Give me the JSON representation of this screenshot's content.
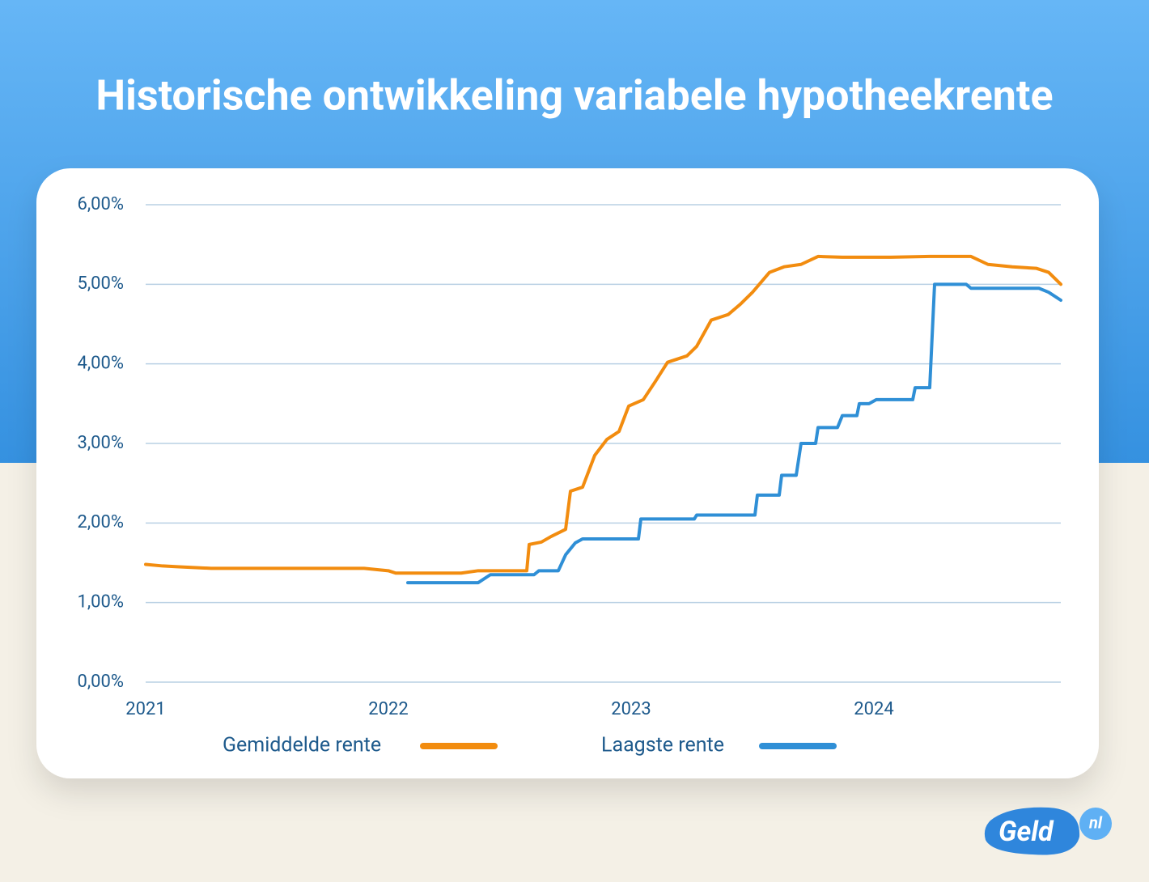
{
  "chart_data": {
    "type": "line",
    "title": "Historische ontwikkeling variabele hypotheekrente",
    "xlim": [
      2021,
      2024.77
    ],
    "xticks": [
      2021,
      2022,
      2023,
      2024
    ],
    "ylim": [
      0,
      6
    ],
    "yticks": [
      {
        "value": 0,
        "label": "0,00%"
      },
      {
        "value": 1,
        "label": "1,00%"
      },
      {
        "value": 2,
        "label": "2,00%"
      },
      {
        "value": 3,
        "label": "3,00%"
      },
      {
        "value": 4,
        "label": "4,00%"
      },
      {
        "value": 5,
        "label": "5,00%"
      },
      {
        "value": 6,
        "label": "6,00%"
      }
    ],
    "grid": true,
    "legend": "bottom",
    "series": [
      {
        "name": "Gemiddelde rente",
        "color": "#f28c0f",
        "x": [
          2021.0,
          2021.07,
          2021.13,
          2021.27,
          2021.57,
          2021.9,
          2022.0,
          2022.03,
          2022.1,
          2022.3,
          2022.37,
          2022.57,
          2022.58,
          2022.63,
          2022.67,
          2022.73,
          2022.75,
          2022.8,
          2022.85,
          2022.9,
          2022.95,
          2022.99,
          2023.05,
          2023.1,
          2023.15,
          2023.23,
          2023.27,
          2023.33,
          2023.4,
          2023.45,
          2023.5,
          2023.57,
          2023.63,
          2023.7,
          2023.77,
          2023.87,
          2024.07,
          2024.23,
          2024.4,
          2024.47,
          2024.57,
          2024.67,
          2024.72,
          2024.77
        ],
        "values": [
          1.48,
          1.46,
          1.45,
          1.43,
          1.43,
          1.43,
          1.4,
          1.37,
          1.37,
          1.37,
          1.4,
          1.4,
          1.73,
          1.76,
          1.83,
          1.92,
          2.4,
          2.45,
          2.85,
          3.05,
          3.15,
          3.47,
          3.55,
          3.78,
          4.02,
          4.1,
          4.22,
          4.55,
          4.62,
          4.75,
          4.9,
          5.15,
          5.22,
          5.25,
          5.35,
          5.34,
          5.34,
          5.35,
          5.35,
          5.25,
          5.22,
          5.2,
          5.15,
          5.0
        ]
      },
      {
        "name": "Laagste rente",
        "color": "#2f8fd6",
        "x": [
          2022.08,
          2022.37,
          2022.42,
          2022.6,
          2022.62,
          2022.7,
          2022.73,
          2022.77,
          2022.8,
          2023.03,
          2023.04,
          2023.26,
          2023.27,
          2023.51,
          2023.52,
          2023.61,
          2023.62,
          2023.68,
          2023.7,
          2023.76,
          2023.77,
          2023.85,
          2023.87,
          2023.93,
          2023.94,
          2023.98,
          2024.01,
          2024.16,
          2024.17,
          2024.23,
          2024.25,
          2024.38,
          2024.4,
          2024.68,
          2024.72,
          2024.77
        ],
        "values": [
          1.25,
          1.25,
          1.35,
          1.35,
          1.4,
          1.4,
          1.6,
          1.75,
          1.8,
          1.8,
          2.05,
          2.05,
          2.1,
          2.1,
          2.35,
          2.35,
          2.6,
          2.6,
          3.0,
          3.0,
          3.2,
          3.2,
          3.35,
          3.35,
          3.5,
          3.5,
          3.55,
          3.55,
          3.7,
          3.7,
          5.0,
          5.0,
          4.95,
          4.95,
          4.9,
          4.8
        ]
      }
    ]
  },
  "logo_text": "Geld",
  "logo_suffix": "nl"
}
